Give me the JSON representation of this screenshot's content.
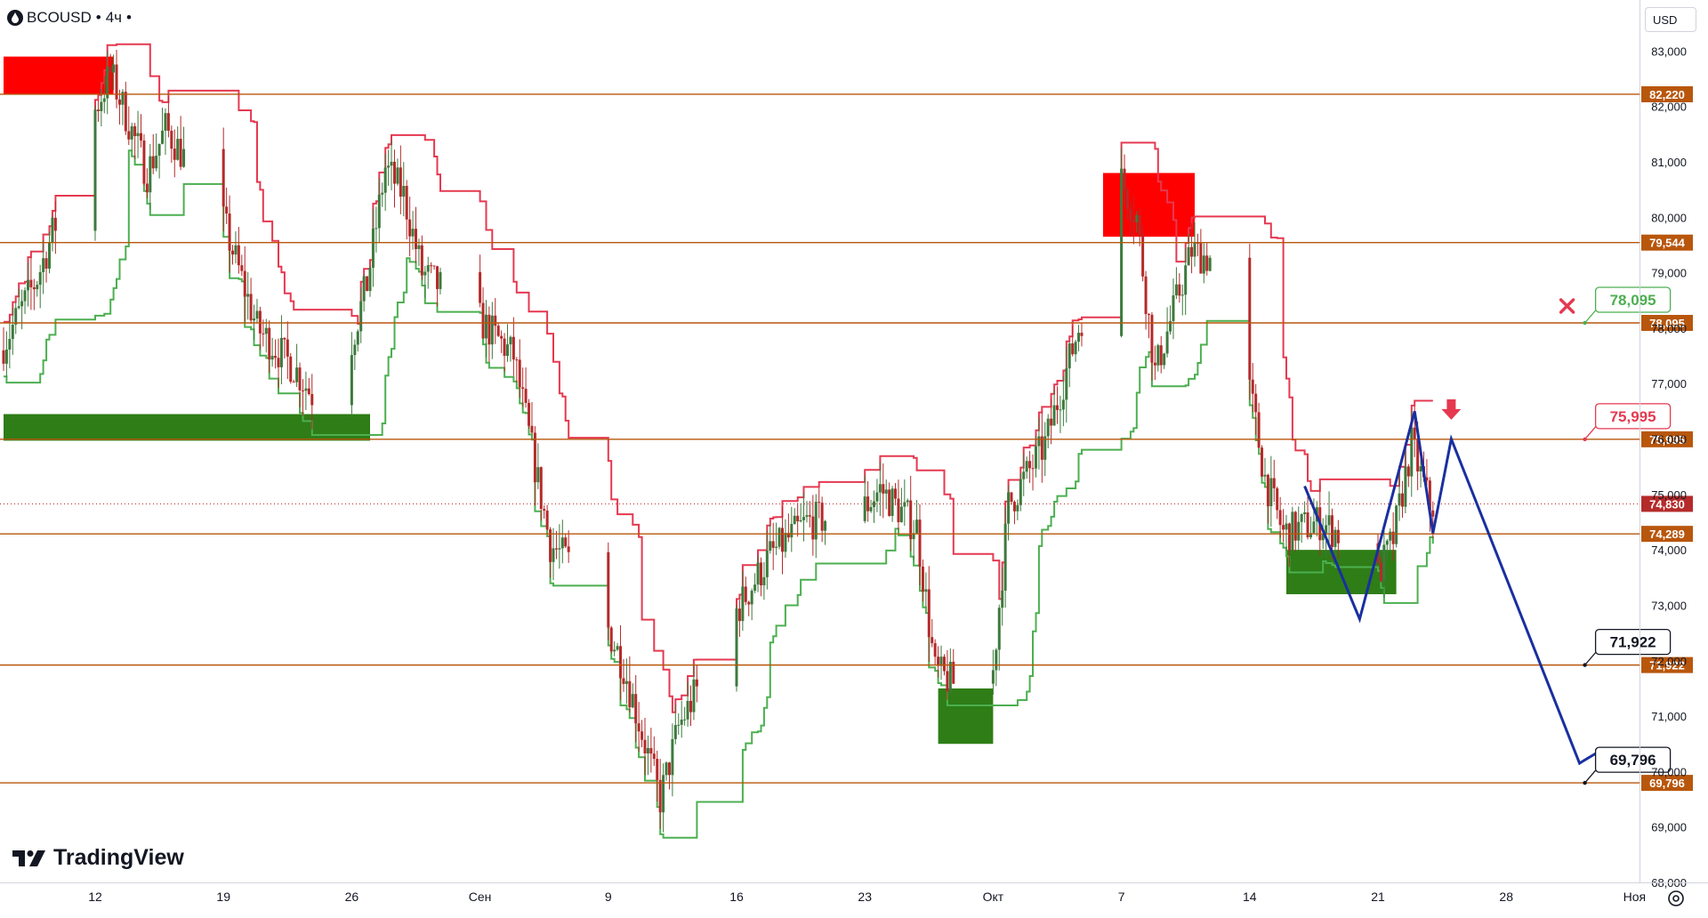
{
  "header": {
    "symbol": "BCOUSD",
    "sep1": "•",
    "timeframe": "4ч",
    "sep2": "•"
  },
  "currency": "USD",
  "logo_text": "TradingView",
  "colors": {
    "up": "#26a69a",
    "down": "#b52a2a",
    "candle": "#3d7a3d",
    "level": "#b8560c",
    "supply": "#ff0000",
    "demand": "#2e7d16",
    "sup_line": "#e53950",
    "dem_line": "#4caf50",
    "forecast": "#1a2fa0"
  },
  "chart_data": {
    "type": "candlestick",
    "symbol": "BCOUSD",
    "timeframe": "4h",
    "currency": "USD",
    "y_range": [
      68.0,
      83.6
    ],
    "y_ticks": [
      68.0,
      69.0,
      70.0,
      71.0,
      72.0,
      73.0,
      74.0,
      75.0,
      76.0,
      77.0,
      78.0,
      79.0,
      80.0,
      81.0,
      82.0,
      83.0
    ],
    "y_tick_labels": [
      "68,000",
      "69,000",
      "70,000",
      "71,000",
      "72,000",
      "73,000",
      "74,000",
      "75,000",
      "76,000",
      "77,000",
      "78,000",
      "79,000",
      "80,000",
      "81,000",
      "82,000",
      "83,000"
    ],
    "x_ticks": [
      {
        "date": "2024-08-12",
        "label": "12"
      },
      {
        "date": "2024-08-19",
        "label": "19"
      },
      {
        "date": "2024-08-26",
        "label": "26"
      },
      {
        "date": "2024-09-02",
        "label": "Сен"
      },
      {
        "date": "2024-09-09",
        "label": "9"
      },
      {
        "date": "2024-09-16",
        "label": "16"
      },
      {
        "date": "2024-09-23",
        "label": "23"
      },
      {
        "date": "2024-09-30",
        "label": "Окт"
      },
      {
        "date": "2024-10-07",
        "label": "7"
      },
      {
        "date": "2024-10-14",
        "label": "14"
      },
      {
        "date": "2024-10-21",
        "label": "21"
      },
      {
        "date": "2024-10-28",
        "label": "28"
      },
      {
        "date": "2024-11-04",
        "label": "Ноя"
      }
    ],
    "current_price": {
      "value": 74.83,
      "label": "74,830"
    },
    "levels": [
      {
        "value": 82.22,
        "label": "82,220"
      },
      {
        "value": 79.544,
        "label": "79,544"
      },
      {
        "value": 78.095,
        "label": "78,095"
      },
      {
        "value": 75.995,
        "label": "75,995"
      },
      {
        "value": 74.289,
        "label": "74,289"
      },
      {
        "value": 71.922,
        "label": "71,922"
      },
      {
        "value": 69.796,
        "label": "69,796"
      }
    ],
    "callouts": [
      {
        "label": "78,095",
        "value": 78.095,
        "kind": "invalidated"
      },
      {
        "label": "75,995",
        "value": 75.995,
        "kind": "entry"
      },
      {
        "label": "71,922",
        "value": 71.922,
        "kind": "target"
      },
      {
        "label": "69,796",
        "value": 69.796,
        "kind": "target"
      }
    ],
    "supply_zones": [
      {
        "from": "2024-08-07",
        "to": "2024-08-13",
        "low": 82.22,
        "high": 82.9
      },
      {
        "from": "2024-10-06",
        "to": "2024-10-11",
        "low": 79.65,
        "high": 80.8
      }
    ],
    "demand_zones": [
      {
        "from": "2024-08-07",
        "to": "2024-08-27",
        "low": 75.97,
        "high": 76.45
      },
      {
        "from": "2024-09-27",
        "to": "2024-09-30",
        "low": 70.5,
        "high": 71.5
      },
      {
        "from": "2024-10-16",
        "to": "2024-10-22",
        "low": 73.2,
        "high": 74.0
      }
    ],
    "forecast_path": [
      {
        "date": "2024-10-17",
        "price": 75.15
      },
      {
        "date": "2024-10-20",
        "price": 72.75
      },
      {
        "date": "2024-10-23",
        "price": 76.5
      },
      {
        "date": "2024-10-24",
        "price": 74.3
      },
      {
        "date": "2024-10-25",
        "price": 76.0
      },
      {
        "date": "2024-11-01",
        "price": 70.15
      },
      {
        "date": "2024-11-02",
        "price": 70.35
      }
    ],
    "annotations": [
      {
        "type": "cross",
        "date": "2024-11-01",
        "price": 78.4
      },
      {
        "type": "arrow-down",
        "date": "2024-10-25",
        "price": 76.3
      }
    ]
  }
}
